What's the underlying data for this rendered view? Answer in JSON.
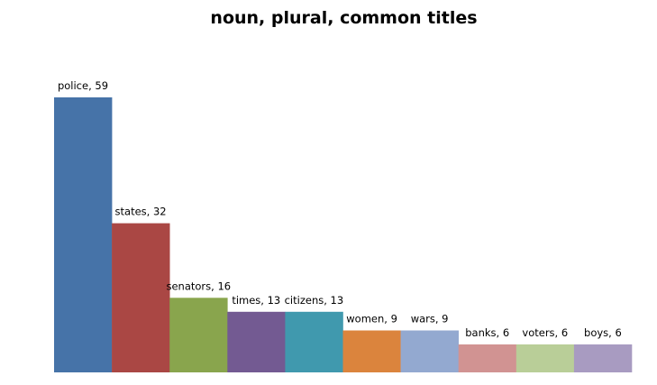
{
  "chart_data": {
    "type": "bar",
    "title": "noun, plural, common titles",
    "categories": [
      "police",
      "states",
      "senators",
      "times",
      "citizens",
      "women",
      "wars",
      "banks",
      "voters",
      "boys"
    ],
    "values": [
      59,
      32,
      16,
      13,
      13,
      9,
      9,
      6,
      6,
      6
    ],
    "data_labels": [
      "police, 59",
      "states, 32",
      "senators, 16",
      "times, 13",
      "citizens, 13",
      "women, 9",
      "wars, 9",
      "banks, 6",
      "voters, 6",
      "boys, 6"
    ],
    "colors": [
      "#4673A8",
      "#AA4744",
      "#89A54D",
      "#735A92",
      "#4099AE",
      "#DB843D",
      "#93A9D0",
      "#D19392",
      "#B9CE98",
      "#A89BC1"
    ],
    "xlabel": "",
    "ylabel": "",
    "ylim": [
      0,
      59
    ],
    "grid": false,
    "legend": "none"
  }
}
